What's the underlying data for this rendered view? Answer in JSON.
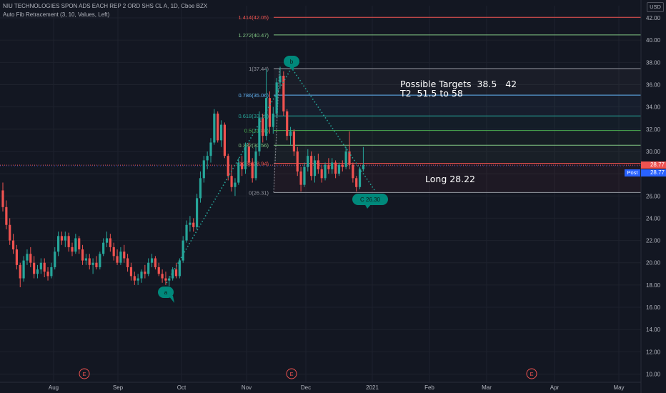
{
  "header": {
    "title": "NIU TECHNOLOGIES SPON ADS EACH REP 2 ORD SHS CL A, 1D, Cboe BZX",
    "indicator": "Auto Fib Retracement (3, 10, Values, Left)"
  },
  "currency_button": "USD",
  "price_tags": {
    "last": "28.77",
    "post_label": "Post",
    "post": "28.77"
  },
  "notes": {
    "targets_line1": "Possible Targets  38.5   42",
    "targets_line2": "T2  51.5 to 58",
    "long": "Long 28.22"
  },
  "colors": {
    "up": "#26a69a",
    "down": "#ef5350",
    "background": "#131722",
    "grid": "#1e222d",
    "zigzag": "#26a69a"
  },
  "chart_data": {
    "type": "candlestick",
    "x_ticks": [
      "Aug",
      "Sep",
      "Oct",
      "Nov",
      "Dec",
      "2021",
      "Feb",
      "Mar",
      "Apr",
      "May"
    ],
    "y_ticks": [
      "10.00",
      "12.00",
      "14.00",
      "16.00",
      "18.00",
      "20.00",
      "22.00",
      "24.00",
      "26.00",
      "28.00",
      "30.00",
      "32.00",
      "34.00",
      "36.00",
      "38.00",
      "40.00",
      "42.00"
    ],
    "ylim": [
      9.7,
      43.3
    ],
    "fib_levels": [
      {
        "label": "1.414(42.05)",
        "value": 42.05,
        "color": "#ef5350"
      },
      {
        "label": "1.272(40.47)",
        "value": 40.47,
        "color": "#81c784"
      },
      {
        "label": "1(37.44)",
        "value": 37.44,
        "color": "#9598a1"
      },
      {
        "label": "0.786(35.06)",
        "value": 35.06,
        "color": "#64b5f6"
      },
      {
        "label": "0.618(33.19)",
        "value": 33.19,
        "color": "#26a69a"
      },
      {
        "label": "0.5(31.88)",
        "value": 31.88,
        "color": "#4caf50"
      },
      {
        "label": "0.382(30.56)",
        "value": 30.56,
        "color": "#81c784"
      },
      {
        "label": "0.236(28.94)",
        "value": 28.94,
        "color": "#ef5350"
      },
      {
        "label": "0(26.31)",
        "value": 26.31,
        "color": "#9598a1"
      }
    ],
    "wave_labels": [
      {
        "text": "a",
        "value": 18.0
      },
      {
        "text": "b",
        "value": 37.6
      },
      {
        "text": "C 26.30",
        "value": 26.3
      }
    ],
    "earnings_markers": [
      "E",
      "E",
      "E"
    ],
    "candles": [
      {
        "o": 26.5,
        "h": 27.2,
        "l": 24.6,
        "c": 25.0
      },
      {
        "o": 25.0,
        "h": 25.6,
        "l": 23.0,
        "c": 23.4
      },
      {
        "o": 23.4,
        "h": 24.0,
        "l": 21.6,
        "c": 22.0
      },
      {
        "o": 22.0,
        "h": 22.6,
        "l": 20.8,
        "c": 21.2
      },
      {
        "o": 21.2,
        "h": 21.6,
        "l": 19.4,
        "c": 19.8
      },
      {
        "o": 19.8,
        "h": 20.0,
        "l": 17.8,
        "c": 18.6
      },
      {
        "o": 18.6,
        "h": 20.6,
        "l": 18.3,
        "c": 20.2
      },
      {
        "o": 20.2,
        "h": 21.2,
        "l": 19.8,
        "c": 20.8
      },
      {
        "o": 20.8,
        "h": 21.4,
        "l": 19.6,
        "c": 20.0
      },
      {
        "o": 20.0,
        "h": 20.6,
        "l": 18.6,
        "c": 19.0
      },
      {
        "o": 19.0,
        "h": 19.8,
        "l": 18.6,
        "c": 19.4
      },
      {
        "o": 19.4,
        "h": 20.4,
        "l": 19.0,
        "c": 20.0
      },
      {
        "o": 20.0,
        "h": 20.4,
        "l": 18.7,
        "c": 19.2
      },
      {
        "o": 19.2,
        "h": 19.6,
        "l": 18.4,
        "c": 18.8
      },
      {
        "o": 18.8,
        "h": 20.0,
        "l": 18.6,
        "c": 19.6
      },
      {
        "o": 19.6,
        "h": 21.4,
        "l": 19.4,
        "c": 21.0
      },
      {
        "o": 21.0,
        "h": 22.8,
        "l": 20.6,
        "c": 22.4
      },
      {
        "o": 22.4,
        "h": 22.8,
        "l": 21.6,
        "c": 22.0
      },
      {
        "o": 22.0,
        "h": 22.8,
        "l": 21.4,
        "c": 22.4
      },
      {
        "o": 22.4,
        "h": 22.7,
        "l": 21.0,
        "c": 21.4
      },
      {
        "o": 21.4,
        "h": 21.8,
        "l": 20.6,
        "c": 21.0
      },
      {
        "o": 21.0,
        "h": 22.6,
        "l": 20.8,
        "c": 22.2
      },
      {
        "o": 22.2,
        "h": 22.4,
        "l": 20.8,
        "c": 21.2
      },
      {
        "o": 21.2,
        "h": 21.6,
        "l": 19.8,
        "c": 20.2
      },
      {
        "o": 20.2,
        "h": 20.8,
        "l": 19.8,
        "c": 20.4
      },
      {
        "o": 20.4,
        "h": 20.8,
        "l": 19.4,
        "c": 19.8
      },
      {
        "o": 19.8,
        "h": 20.4,
        "l": 19.0,
        "c": 20.0
      },
      {
        "o": 20.0,
        "h": 20.6,
        "l": 19.4,
        "c": 19.6
      },
      {
        "o": 19.6,
        "h": 21.0,
        "l": 19.4,
        "c": 20.8
      },
      {
        "o": 20.8,
        "h": 22.2,
        "l": 20.6,
        "c": 21.8
      },
      {
        "o": 21.8,
        "h": 22.8,
        "l": 21.4,
        "c": 22.2
      },
      {
        "o": 22.2,
        "h": 22.6,
        "l": 21.0,
        "c": 21.4
      },
      {
        "o": 21.4,
        "h": 21.8,
        "l": 20.2,
        "c": 20.6
      },
      {
        "o": 20.6,
        "h": 21.2,
        "l": 19.8,
        "c": 20.0
      },
      {
        "o": 20.0,
        "h": 21.4,
        "l": 19.8,
        "c": 21.0
      },
      {
        "o": 21.0,
        "h": 21.6,
        "l": 20.0,
        "c": 20.4
      },
      {
        "o": 20.4,
        "h": 20.8,
        "l": 19.2,
        "c": 19.6
      },
      {
        "o": 19.6,
        "h": 20.0,
        "l": 18.4,
        "c": 18.8
      },
      {
        "o": 18.8,
        "h": 19.2,
        "l": 18.0,
        "c": 18.4
      },
      {
        "o": 18.4,
        "h": 19.0,
        "l": 18.0,
        "c": 18.6
      },
      {
        "o": 18.6,
        "h": 19.4,
        "l": 18.2,
        "c": 19.2
      },
      {
        "o": 19.2,
        "h": 19.8,
        "l": 18.6,
        "c": 19.0
      },
      {
        "o": 19.0,
        "h": 20.4,
        "l": 18.8,
        "c": 20.0
      },
      {
        "o": 20.0,
        "h": 20.8,
        "l": 19.6,
        "c": 20.4
      },
      {
        "o": 20.4,
        "h": 20.6,
        "l": 19.4,
        "c": 19.6
      },
      {
        "o": 19.6,
        "h": 20.0,
        "l": 18.8,
        "c": 19.0
      },
      {
        "o": 19.0,
        "h": 19.4,
        "l": 18.2,
        "c": 18.6
      },
      {
        "o": 18.6,
        "h": 19.2,
        "l": 18.0,
        "c": 18.4
      },
      {
        "o": 18.4,
        "h": 18.8,
        "l": 17.9,
        "c": 18.6
      },
      {
        "o": 18.6,
        "h": 19.6,
        "l": 18.4,
        "c": 19.4
      },
      {
        "o": 19.4,
        "h": 20.0,
        "l": 18.6,
        "c": 18.8
      },
      {
        "o": 18.8,
        "h": 20.4,
        "l": 18.6,
        "c": 20.2
      },
      {
        "o": 20.2,
        "h": 22.4,
        "l": 20.0,
        "c": 22.0
      },
      {
        "o": 22.0,
        "h": 23.8,
        "l": 21.8,
        "c": 23.4
      },
      {
        "o": 23.4,
        "h": 24.2,
        "l": 22.8,
        "c": 23.6
      },
      {
        "o": 23.6,
        "h": 24.0,
        "l": 22.8,
        "c": 23.2
      },
      {
        "o": 23.2,
        "h": 26.2,
        "l": 23.0,
        "c": 25.8
      },
      {
        "o": 25.8,
        "h": 28.2,
        "l": 25.4,
        "c": 27.6
      },
      {
        "o": 27.6,
        "h": 29.6,
        "l": 27.2,
        "c": 29.2
      },
      {
        "o": 29.2,
        "h": 30.0,
        "l": 28.4,
        "c": 29.6
      },
      {
        "o": 29.6,
        "h": 31.2,
        "l": 29.0,
        "c": 30.8
      },
      {
        "o": 30.8,
        "h": 33.8,
        "l": 30.6,
        "c": 33.4
      },
      {
        "o": 33.4,
        "h": 33.6,
        "l": 30.8,
        "c": 31.0
      },
      {
        "o": 31.0,
        "h": 32.8,
        "l": 30.4,
        "c": 32.4
      },
      {
        "o": 32.4,
        "h": 32.6,
        "l": 29.4,
        "c": 29.6
      },
      {
        "o": 29.6,
        "h": 29.8,
        "l": 27.4,
        "c": 27.8
      },
      {
        "o": 27.8,
        "h": 28.8,
        "l": 26.4,
        "c": 26.8
      },
      {
        "o": 26.8,
        "h": 27.6,
        "l": 26.0,
        "c": 27.2
      },
      {
        "o": 27.2,
        "h": 29.4,
        "l": 27.0,
        "c": 29.0
      },
      {
        "o": 29.0,
        "h": 29.6,
        "l": 27.8,
        "c": 28.4
      },
      {
        "o": 28.4,
        "h": 30.8,
        "l": 28.0,
        "c": 30.4
      },
      {
        "o": 30.4,
        "h": 30.8,
        "l": 28.6,
        "c": 29.0
      },
      {
        "o": 29.0,
        "h": 29.4,
        "l": 27.2,
        "c": 27.6
      },
      {
        "o": 27.6,
        "h": 30.4,
        "l": 27.4,
        "c": 30.0
      },
      {
        "o": 30.0,
        "h": 33.6,
        "l": 29.6,
        "c": 33.0
      },
      {
        "o": 33.0,
        "h": 33.4,
        "l": 30.8,
        "c": 31.4
      },
      {
        "o": 31.4,
        "h": 37.4,
        "l": 31.0,
        "c": 34.8
      },
      {
        "o": 34.8,
        "h": 35.4,
        "l": 31.6,
        "c": 32.2
      },
      {
        "o": 32.2,
        "h": 34.0,
        "l": 31.6,
        "c": 33.4
      },
      {
        "o": 33.4,
        "h": 36.6,
        "l": 33.0,
        "c": 36.2
      },
      {
        "o": 36.2,
        "h": 37.6,
        "l": 35.8,
        "c": 36.8
      },
      {
        "o": 36.8,
        "h": 37.2,
        "l": 33.2,
        "c": 33.6
      },
      {
        "o": 33.6,
        "h": 33.8,
        "l": 31.0,
        "c": 31.4
      },
      {
        "o": 31.4,
        "h": 32.2,
        "l": 30.6,
        "c": 31.8
      },
      {
        "o": 31.8,
        "h": 32.0,
        "l": 29.6,
        "c": 30.0
      },
      {
        "o": 30.0,
        "h": 30.4,
        "l": 27.8,
        "c": 28.2
      },
      {
        "o": 28.2,
        "h": 28.6,
        "l": 26.4,
        "c": 27.0
      },
      {
        "o": 27.0,
        "h": 29.0,
        "l": 26.8,
        "c": 28.6
      },
      {
        "o": 28.6,
        "h": 30.2,
        "l": 28.2,
        "c": 29.6
      },
      {
        "o": 29.6,
        "h": 30.0,
        "l": 27.4,
        "c": 27.8
      },
      {
        "o": 27.8,
        "h": 29.6,
        "l": 27.2,
        "c": 29.2
      },
      {
        "o": 29.2,
        "h": 29.8,
        "l": 28.0,
        "c": 28.4
      },
      {
        "o": 28.4,
        "h": 28.8,
        "l": 27.2,
        "c": 27.6
      },
      {
        "o": 27.6,
        "h": 29.0,
        "l": 27.4,
        "c": 28.8
      },
      {
        "o": 28.8,
        "h": 29.4,
        "l": 28.0,
        "c": 28.4
      },
      {
        "o": 28.4,
        "h": 29.4,
        "l": 28.0,
        "c": 29.0
      },
      {
        "o": 29.0,
        "h": 29.2,
        "l": 27.6,
        "c": 28.0
      },
      {
        "o": 28.0,
        "h": 29.0,
        "l": 27.8,
        "c": 28.8
      },
      {
        "o": 28.8,
        "h": 29.2,
        "l": 28.2,
        "c": 28.6
      },
      {
        "o": 28.6,
        "h": 30.4,
        "l": 28.4,
        "c": 30.0
      },
      {
        "o": 30.0,
        "h": 31.8,
        "l": 28.4,
        "c": 28.8
      },
      {
        "o": 28.8,
        "h": 29.0,
        "l": 27.2,
        "c": 27.6
      },
      {
        "o": 27.6,
        "h": 27.8,
        "l": 26.4,
        "c": 26.8
      },
      {
        "o": 26.8,
        "h": 28.6,
        "l": 26.6,
        "c": 28.4
      },
      {
        "o": 28.4,
        "h": 30.4,
        "l": 28.2,
        "c": 28.77
      }
    ]
  }
}
